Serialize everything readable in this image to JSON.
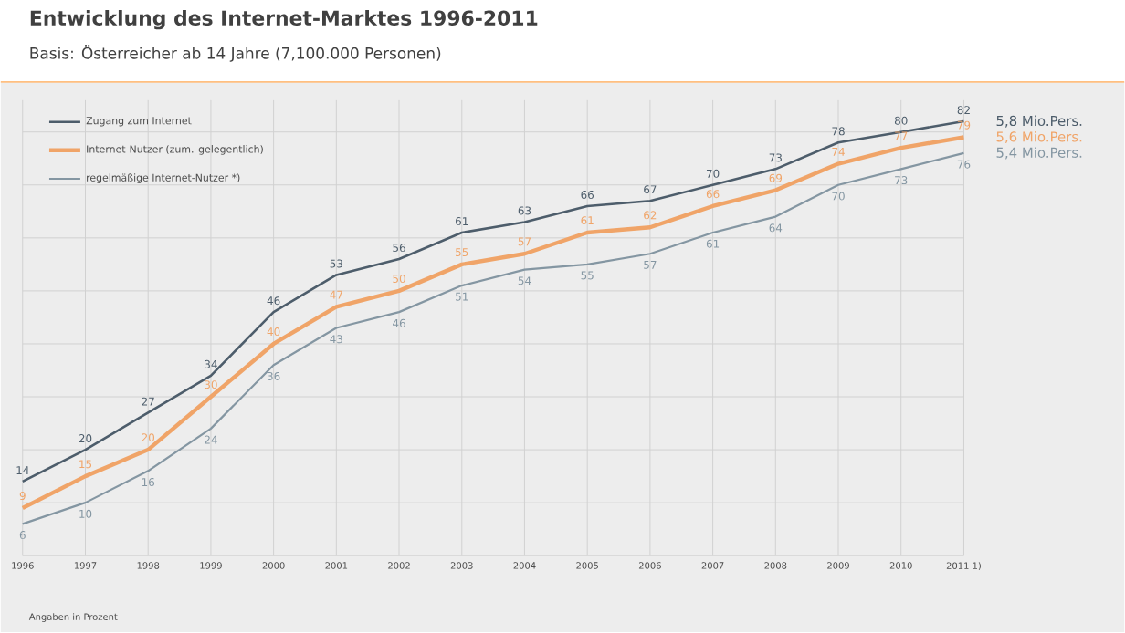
{
  "chart_data": {
    "type": "line",
    "title": "Entwicklung des Internet-Marktes 1996-2011",
    "subtitle": "Basis: Österreicher ab 14 Jahre (7,100.000 Personen)",
    "categories": [
      "1996",
      "1997",
      "1998",
      "1999",
      "2000",
      "2001",
      "2002",
      "2003",
      "2004",
      "2005",
      "2006",
      "2007",
      "2008",
      "2009",
      "2010",
      "2011 1)"
    ],
    "series": [
      {
        "name": "Zugang zum Internet",
        "color": "#4d5d6b",
        "values": [
          14,
          20,
          27,
          34,
          46,
          53,
          56,
          61,
          63,
          66,
          67,
          70,
          73,
          78,
          80,
          82
        ]
      },
      {
        "name": "Internet-Nutzer (zum. gelegentlich)",
        "color": "#f0a468",
        "values": [
          9,
          15,
          20,
          30,
          40,
          47,
          50,
          55,
          57,
          61,
          62,
          66,
          69,
          74,
          77,
          79
        ]
      },
      {
        "name": "regelmäßige Internet-Nutzer *)",
        "color": "#8496a2",
        "values": [
          6,
          10,
          16,
          24,
          36,
          43,
          46,
          51,
          54,
          55,
          57,
          61,
          64,
          70,
          73,
          76
        ]
      }
    ],
    "ylim": [
      0,
      86
    ],
    "yticks": [
      {
        "value": 0,
        "label": null
      },
      {
        "value": 10,
        "label": null
      },
      {
        "value": 20,
        "label": null
      },
      {
        "value": 30,
        "label": null
      },
      {
        "value": 40,
        "label": null
      },
      {
        "value": 50,
        "label": null
      },
      {
        "value": 60,
        "label": null
      },
      {
        "value": 70,
        "label": null
      },
      {
        "value": 80,
        "label": null
      }
    ],
    "tick_labels": "x",
    "grid": true,
    "legend": "top left",
    "data_labels": true,
    "marker": "none",
    "line_style": "solid",
    "annotations": [
      {
        "text": "5,8 Mio.Pers.",
        "x": "2011 1)",
        "y": 82
      },
      {
        "text": "5,6 Mio.Pers.",
        "x": "2011 1)",
        "y": 79
      },
      {
        "text": "5,4 Mio.Pers.",
        "x": "2011 1)",
        "y": 76
      },
      "Angaben in Prozent"
    ]
  }
}
